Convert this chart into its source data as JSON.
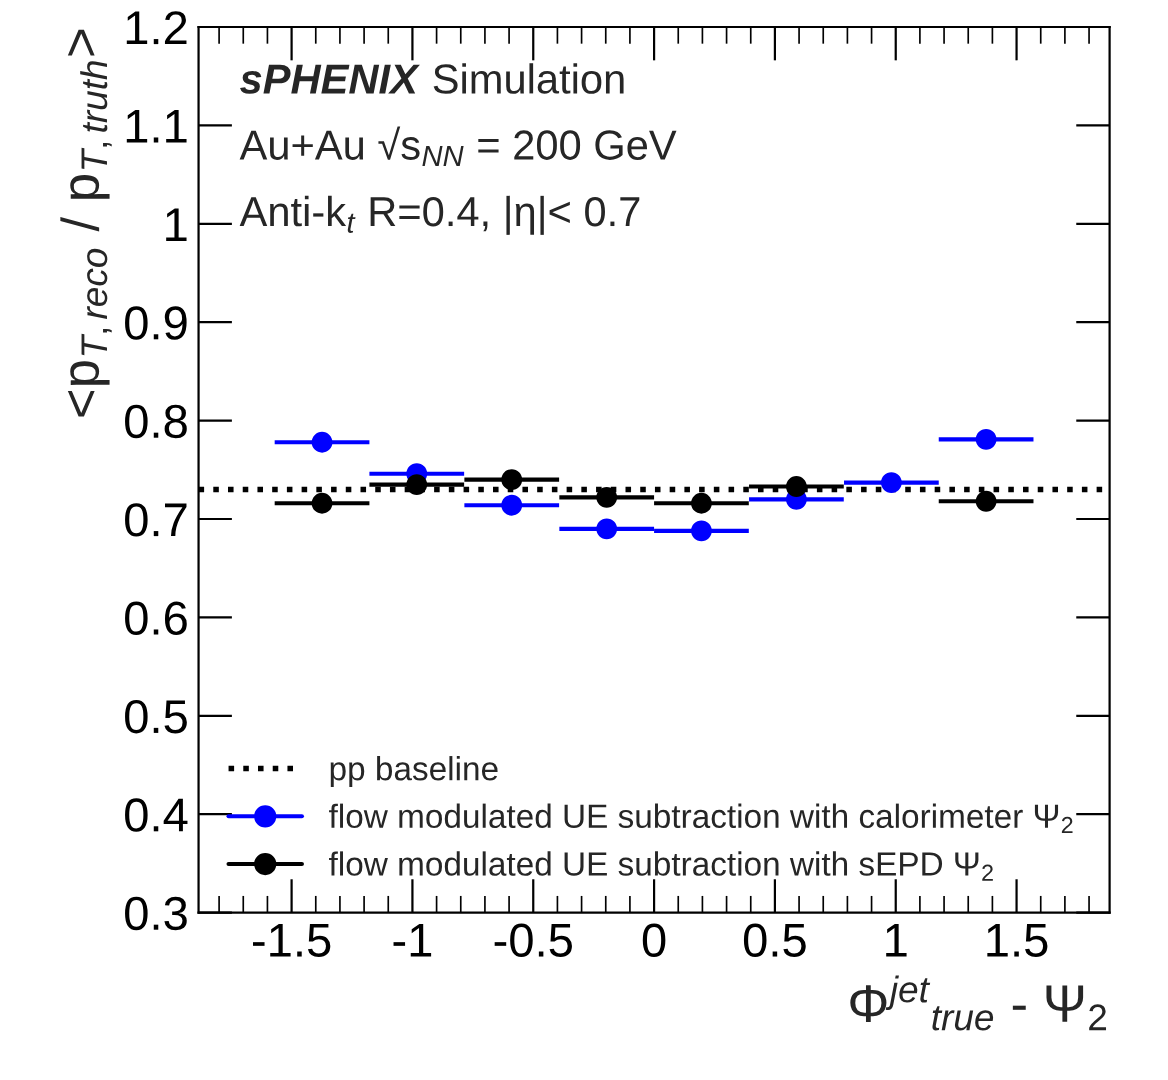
{
  "chart_data": {
    "type": "scatter",
    "ylabel": "<p$_{T,reco}$ / p$_{T,truth}$>",
    "xlabel": "Φ$^{jet}$$_{true}$ - Ψ$_{2}$",
    "annotations": [
      "sPHENIX",
      "Simulation",
      "Au+Au √s$_{NN}$ = 200 GeV",
      "Anti-k$_{t}$ R=0.4, |η|< 0.7"
    ],
    "x": [
      -1.374,
      -0.982,
      -0.589,
      -0.196,
      0.196,
      0.589,
      0.982,
      1.374
    ],
    "series": [
      {
        "name": "flow modulated UE subtraction with calorimeter Ψ$_{2}$",
        "color": "#0000ff",
        "values": [
          0.778,
          0.746,
          0.714,
          0.69,
          0.688,
          0.72,
          0.737,
          0.781
        ],
        "xerrors": [
          0.196,
          0.196,
          0.196,
          0.196,
          0.196,
          0.196,
          0.196,
          0.196
        ]
      },
      {
        "name": "flow modulated UE subtraction with sEPD Ψ$_{2}$",
        "color": "#000000",
        "values": [
          0.716,
          0.735,
          0.74,
          0.722,
          0.716,
          0.733,
          null,
          0.718
        ],
        "xerrors": [
          0.196,
          0.196,
          0.196,
          0.196,
          0.196,
          0.196,
          null,
          0.196
        ]
      }
    ],
    "ref_lines": [
      {
        "axis": "y",
        "value": 0.73,
        "label": "pp baseline",
        "color": "#000000",
        "line_style": "dotted"
      }
    ],
    "xlim": [
      -1.885,
      1.885
    ],
    "ylim": [
      0.3,
      1.2
    ],
    "xticks": [
      -1.5,
      -1,
      -0.5,
      0,
      0.5,
      1,
      1.5
    ],
    "yticks": [
      0.3,
      0.4,
      0.5,
      0.6,
      0.7,
      0.8,
      0.9,
      1,
      1.1,
      1.2
    ],
    "marker": "circle",
    "grid": false,
    "legend": "bottom left"
  }
}
